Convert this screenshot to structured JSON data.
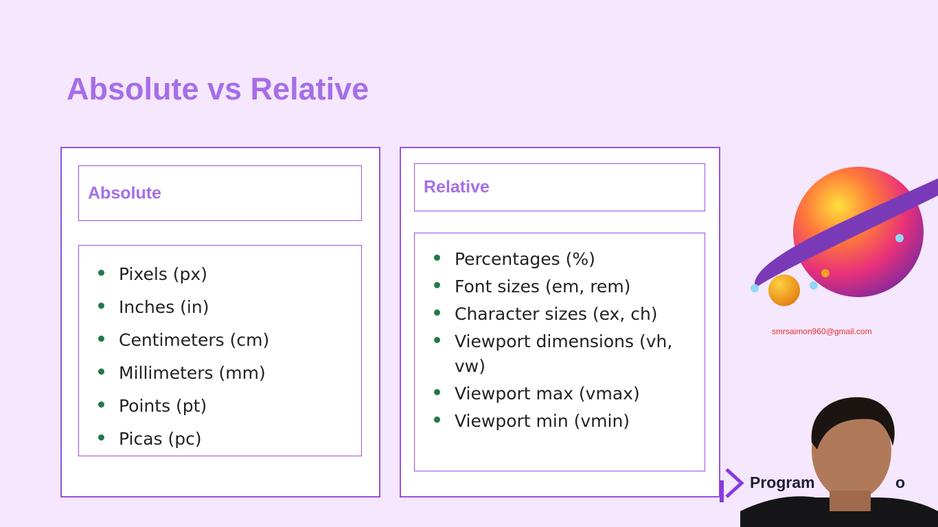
{
  "title": "Absolute vs Relative",
  "absolute": {
    "heading": "Absolute",
    "items": [
      "Pixels (px)",
      "Inches (in)",
      "Centimeters (cm)",
      "Millimeters (mm)",
      "Points (pt)",
      "Picas (pc)"
    ]
  },
  "relative": {
    "heading": "Relative",
    "items": [
      "Percentages (%)",
      "Font sizes (em, rem)",
      "Character sizes (ex, ch)",
      "Viewport dimensions (vh, vw)",
      "Viewport max (vmax)",
      "Viewport min (vmin)"
    ]
  },
  "email": "smrsaimon960@gmail.com",
  "brand": {
    "left": "Program",
    "right": "o"
  }
}
